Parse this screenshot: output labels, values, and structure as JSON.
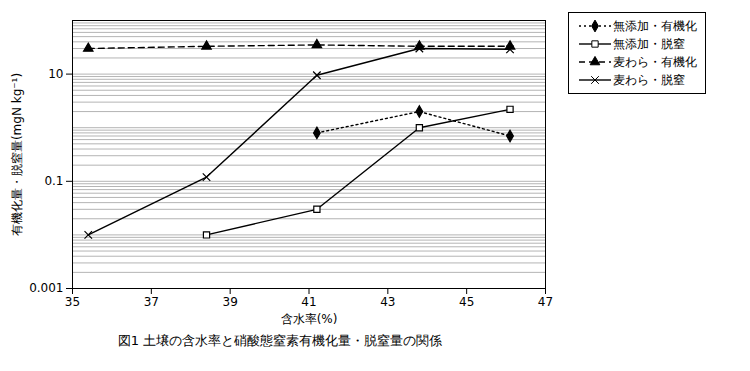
{
  "chart_data": {
    "type": "line",
    "title": "図1 土壌の含水率と硝酸態窒素有機化量・脱窒量の関係",
    "x_label": "含水率(%)",
    "y_label": "有機化量・脱窒量(mgN kg⁻¹)",
    "log": "y",
    "grid": true,
    "legend": "top-right",
    "xlim": [
      35,
      47
    ],
    "xticks": [
      35,
      37,
      39,
      41,
      43,
      45,
      47
    ],
    "ylim": [
      0.001,
      100
    ],
    "yticks": [
      0.001,
      0.1,
      10
    ],
    "series": [
      {
        "name": "無添加・有機化",
        "color": "#000000",
        "marker": "diamond",
        "line_style": "dotted",
        "x": [
          41.2,
          43.8,
          46.1
        ],
        "values": [
          0.8,
          2.0,
          0.7
        ]
      },
      {
        "name": "無添加・脱窒",
        "color": "#000000",
        "marker": "open_square",
        "line_style": "solid",
        "x": [
          38.4,
          41.2,
          43.8,
          46.1
        ],
        "values": [
          0.01,
          0.03,
          1.0,
          2.2
        ]
      },
      {
        "name": "麦わら・有機化",
        "color": "#000000",
        "marker": "triangle",
        "line_style": "dashed",
        "x": [
          35.4,
          38.4,
          41.2,
          43.8,
          46.1
        ],
        "values": [
          30,
          33,
          35,
          33,
          33
        ]
      },
      {
        "name": "麦わら・脱窒",
        "color": "#000000",
        "marker": "times",
        "line_style": "solid",
        "x": [
          35.4,
          38.4,
          41.2,
          43.8,
          46.1
        ],
        "values": [
          0.01,
          0.12,
          9.5,
          30,
          29
        ]
      }
    ]
  }
}
